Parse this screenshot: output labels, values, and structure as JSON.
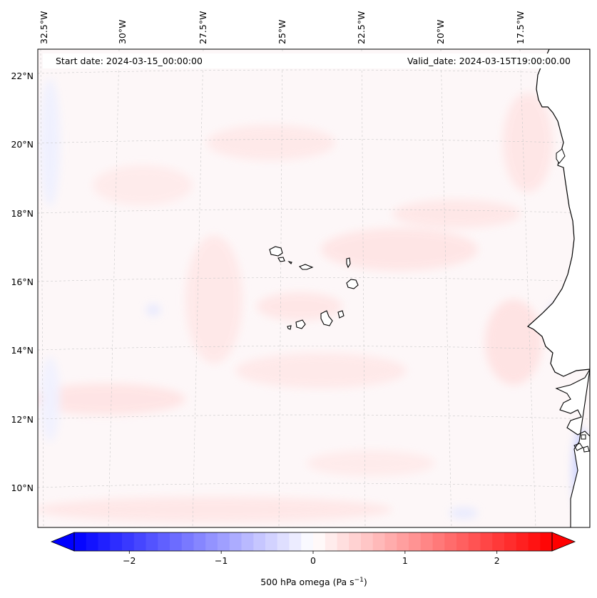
{
  "header": {
    "start_label": "Start date: 2024-03-15_00:00:00",
    "valid_label": "Valid_date: 2024-03-15T19:00:00.00"
  },
  "map": {
    "lon_labels": [
      "32.5°W",
      "30°W",
      "27.5°W",
      "25°W",
      "22.5°W",
      "20°W",
      "17.5°W"
    ],
    "lat_labels": [
      "22°N",
      "20°N",
      "18°N",
      "16°N",
      "14°N",
      "12°N",
      "10°N"
    ],
    "land_color": "#ffffff",
    "coast_color": "#000000",
    "grid_color": "#c8c8c8"
  },
  "colorbar": {
    "label_text": "500 hPa omega (Pa s",
    "label_sup": "−1",
    "label_close": ")",
    "min": -2.6,
    "max": 2.6,
    "ticks": [
      -2,
      -1,
      0,
      1,
      2
    ],
    "tick_labels": [
      "−2",
      "−1",
      "0",
      "1",
      "2"
    ],
    "extend": "both",
    "cmap": "bwr",
    "low_color": "#0000ff",
    "mid_color": "#ffffff",
    "high_color": "#ff0000"
  }
}
